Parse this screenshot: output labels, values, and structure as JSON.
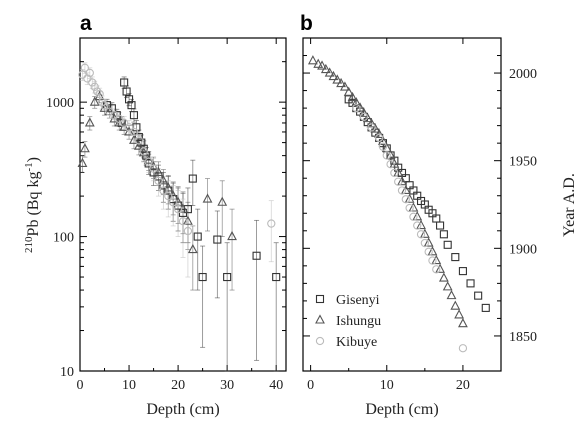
{
  "chart_data": [
    {
      "panel": "a",
      "type": "scatter",
      "xlabel": "Depth (cm)",
      "ylabel_sup": "210",
      "ylabel_main": "Pb (Bq kg",
      "ylabel_unit_sup": "-1",
      "ylabel_end": ")",
      "xlim": [
        0,
        42
      ],
      "xticks": [
        "0",
        "10",
        "20",
        "30",
        "40"
      ],
      "y_scale": "log",
      "ylim": [
        10,
        3000
      ],
      "yticks": [
        "10",
        "100",
        "1000"
      ],
      "series": [
        {
          "marker": "square",
          "color": "#333333",
          "points": [
            [
              5.5,
              950,
              100
            ],
            [
              6.5,
              900,
              90
            ],
            [
              7.5,
              800,
              85
            ],
            [
              8.5,
              700,
              80
            ],
            [
              9.0,
              1400,
              140
            ],
            [
              9.5,
              1200,
              120
            ],
            [
              10.0,
              1050,
              110
            ],
            [
              10.5,
              950,
              100
            ],
            [
              11.0,
              800,
              90
            ],
            [
              11.5,
              650,
              80
            ],
            [
              12.0,
              550,
              70
            ],
            [
              12.5,
              500,
              70
            ],
            [
              13.0,
              450,
              65
            ],
            [
              13.5,
              400,
              60
            ],
            [
              14.0,
              350,
              60
            ],
            [
              15.0,
              300,
              60
            ],
            [
              16.0,
              280,
              60
            ],
            [
              17.0,
              240,
              60
            ],
            [
              18.0,
              220,
              60
            ],
            [
              19.0,
              190,
              60
            ],
            [
              20.0,
              170,
              60
            ],
            [
              21.0,
              150,
              60
            ],
            [
              22.0,
              160,
              70
            ],
            [
              23.0,
              270,
              100
            ],
            [
              24.0,
              100,
              60
            ],
            [
              25.0,
              50,
              35
            ],
            [
              28.0,
              95,
              60
            ],
            [
              30.0,
              50,
              40
            ],
            [
              36.0,
              72,
              60
            ],
            [
              40.0,
              50,
              40
            ]
          ]
        },
        {
          "marker": "triangle",
          "color": "#555555",
          "points": [
            [
              0.5,
              350,
              50
            ],
            [
              1.0,
              450,
              60
            ],
            [
              2.0,
              700,
              80
            ],
            [
              3.0,
              1000,
              100
            ],
            [
              4.0,
              1100,
              110
            ],
            [
              5.0,
              900,
              100
            ],
            [
              6.0,
              850,
              90
            ],
            [
              7.0,
              750,
              85
            ],
            [
              8.0,
              700,
              80
            ],
            [
              9.0,
              650,
              75
            ],
            [
              10.0,
              600,
              70
            ],
            [
              11.0,
              520,
              70
            ],
            [
              12.0,
              470,
              65
            ],
            [
              13.0,
              420,
              60
            ],
            [
              14.0,
              370,
              60
            ],
            [
              15.0,
              330,
              60
            ],
            [
              16.0,
              300,
              60
            ],
            [
              17.0,
              260,
              55
            ],
            [
              18.0,
              230,
              55
            ],
            [
              19.0,
              200,
              55
            ],
            [
              20.0,
              180,
              55
            ],
            [
              21.0,
              160,
              55
            ],
            [
              22.0,
              130,
              50
            ],
            [
              23.0,
              80,
              40
            ],
            [
              26.0,
              190,
              80
            ],
            [
              29.0,
              180,
              80
            ],
            [
              31.0,
              100,
              60
            ]
          ]
        },
        {
          "marker": "circle",
          "color": "#bbbbbb",
          "points": [
            [
              0.5,
              1600,
              150
            ],
            [
              1.0,
              1800,
              160
            ],
            [
              1.5,
              1500,
              150
            ],
            [
              2.0,
              1650,
              150
            ],
            [
              2.5,
              1400,
              140
            ],
            [
              3.0,
              1300,
              130
            ],
            [
              3.5,
              1200,
              120
            ],
            [
              4.0,
              1150,
              120
            ],
            [
              4.5,
              1000,
              110
            ],
            [
              5.0,
              950,
              100
            ],
            [
              6.0,
              850,
              90
            ],
            [
              7.0,
              800,
              90
            ],
            [
              8.0,
              750,
              85
            ],
            [
              9.0,
              700,
              80
            ],
            [
              10.0,
              650,
              80
            ],
            [
              11.0,
              600,
              75
            ],
            [
              12.0,
              520,
              70
            ],
            [
              13.0,
              430,
              65
            ],
            [
              14.0,
              360,
              60
            ],
            [
              15.0,
              320,
              60
            ],
            [
              16.0,
              260,
              60
            ],
            [
              17.0,
              220,
              60
            ],
            [
              18.0,
              200,
              60
            ],
            [
              19.0,
              180,
              60
            ],
            [
              20.0,
              160,
              60
            ],
            [
              21.0,
              130,
              60
            ],
            [
              22.0,
              110,
              60
            ],
            [
              39.0,
              125,
              60
            ]
          ]
        }
      ]
    },
    {
      "panel": "b",
      "type": "scatter",
      "xlabel": "Depth (cm)",
      "ylabel": "Year A.D.",
      "xlim": [
        -1,
        25
      ],
      "xticks": [
        "0",
        "10",
        "20"
      ],
      "ylim": [
        1830,
        2020
      ],
      "yticks": [
        "1850",
        "1900",
        "1950",
        "2000"
      ],
      "series": [
        {
          "name": "Gisenyi",
          "marker": "square",
          "color": "#333333",
          "points": [
            [
              5.0,
              1985
            ],
            [
              5.5,
              1983
            ],
            [
              6.0,
              1980
            ],
            [
              6.5,
              1978
            ],
            [
              7.0,
              1975
            ],
            [
              7.5,
              1972
            ],
            [
              8.0,
              1969
            ],
            [
              8.5,
              1966
            ],
            [
              9.0,
              1963
            ],
            [
              9.5,
              1960
            ],
            [
              10.0,
              1957
            ],
            [
              10.5,
              1953
            ],
            [
              11.0,
              1950
            ],
            [
              11.5,
              1946
            ],
            [
              12.0,
              1943
            ],
            [
              12.5,
              1940
            ],
            [
              13.0,
              1936
            ],
            [
              13.5,
              1933
            ],
            [
              14.0,
              1930
            ],
            [
              14.5,
              1927
            ],
            [
              15.0,
              1925
            ],
            [
              15.5,
              1922
            ],
            [
              16.0,
              1920
            ],
            [
              16.5,
              1917
            ],
            [
              17.0,
              1913
            ],
            [
              17.5,
              1908
            ],
            [
              18.0,
              1902
            ],
            [
              19.0,
              1895
            ],
            [
              20.0,
              1887
            ],
            [
              21.0,
              1880
            ],
            [
              22.0,
              1873
            ],
            [
              23.0,
              1866
            ]
          ]
        },
        {
          "name": "Ishungu",
          "marker": "triangle",
          "color": "#555555",
          "points": [
            [
              0.3,
              2007
            ],
            [
              1.0,
              2005
            ],
            [
              1.5,
              2004
            ],
            [
              2.0,
              2002
            ],
            [
              2.5,
              2000
            ],
            [
              3.0,
              1998
            ],
            [
              3.5,
              1996
            ],
            [
              4.0,
              1994
            ],
            [
              4.5,
              1992
            ],
            [
              5.0,
              1989
            ],
            [
              5.5,
              1986
            ],
            [
              6.0,
              1983
            ],
            [
              6.5,
              1980
            ],
            [
              7.0,
              1977
            ],
            [
              7.5,
              1974
            ],
            [
              8.0,
              1971
            ],
            [
              8.5,
              1968
            ],
            [
              9.0,
              1965
            ],
            [
              9.5,
              1961
            ],
            [
              10.0,
              1957
            ],
            [
              10.5,
              1953
            ],
            [
              11.0,
              1948
            ],
            [
              11.5,
              1943
            ],
            [
              12.0,
              1938
            ],
            [
              12.5,
              1933
            ],
            [
              13.0,
              1928
            ],
            [
              13.5,
              1923
            ],
            [
              14.0,
              1918
            ],
            [
              14.5,
              1913
            ],
            [
              15.0,
              1908
            ],
            [
              15.5,
              1903
            ],
            [
              16.0,
              1898
            ],
            [
              16.5,
              1893
            ],
            [
              17.0,
              1888
            ],
            [
              17.5,
              1883
            ],
            [
              18.0,
              1878
            ],
            [
              18.5,
              1873
            ],
            [
              19.0,
              1867
            ],
            [
              19.5,
              1862
            ],
            [
              20.0,
              1857
            ]
          ]
        },
        {
          "name": "Kibuye",
          "marker": "circle",
          "color": "#bbbbbb",
          "points": [
            [
              6.0,
              1980
            ],
            [
              7.0,
              1975
            ],
            [
              8.0,
              1969
            ],
            [
              9.0,
              1963
            ],
            [
              9.5,
              1958
            ],
            [
              10.0,
              1953
            ],
            [
              10.5,
              1948
            ],
            [
              11.0,
              1943
            ],
            [
              11.5,
              1938
            ],
            [
              12.0,
              1933
            ],
            [
              12.5,
              1928
            ],
            [
              13.0,
              1923
            ],
            [
              13.5,
              1918
            ],
            [
              14.0,
              1913
            ],
            [
              14.5,
              1908
            ],
            [
              15.0,
              1903
            ],
            [
              15.5,
              1898
            ],
            [
              16.0,
              1893
            ],
            [
              16.5,
              1888
            ],
            [
              20.0,
              1843
            ]
          ]
        }
      ],
      "legend_position": "bottom-left"
    }
  ]
}
